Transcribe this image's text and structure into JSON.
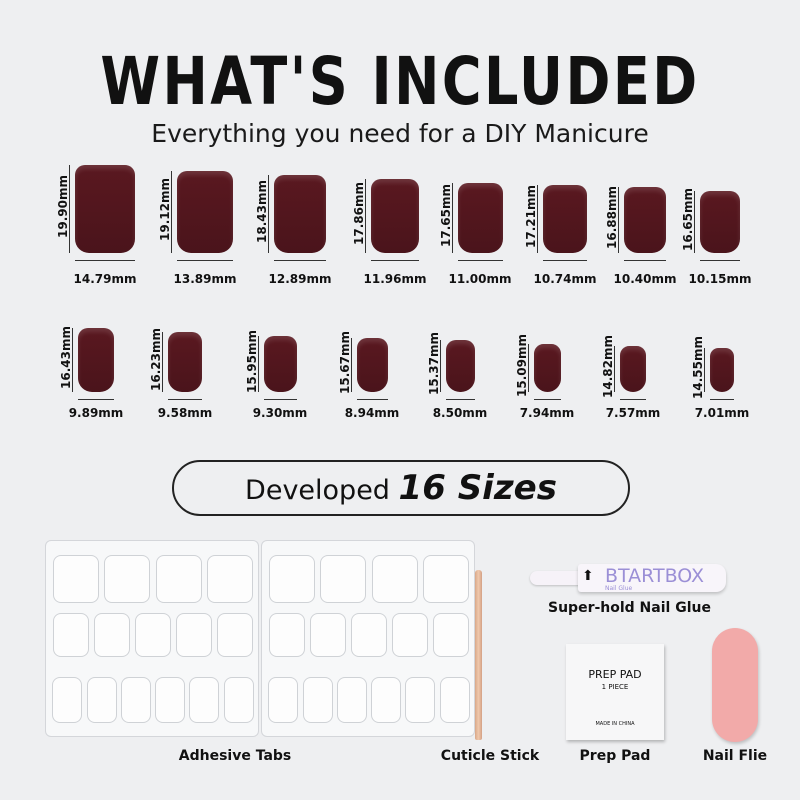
{
  "header": {
    "title": "WHAT'S INCLUDED",
    "subtitle": "Everything you need for a DIY Manicure"
  },
  "nails": [
    {
      "height": "19.90mm",
      "width": "14.79mm"
    },
    {
      "height": "19.12mm",
      "width": "13.89mm"
    },
    {
      "height": "18.43mm",
      "width": "12.89mm"
    },
    {
      "height": "17.86mm",
      "width": "11.96mm"
    },
    {
      "height": "17.65mm",
      "width": "11.00mm"
    },
    {
      "height": "17.21mm",
      "width": "10.74mm"
    },
    {
      "height": "16.88mm",
      "width": "10.40mm"
    },
    {
      "height": "16.65mm",
      "width": "10.15mm"
    },
    {
      "height": "16.43mm",
      "width": "9.89mm"
    },
    {
      "height": "16.23mm",
      "width": "9.58mm"
    },
    {
      "height": "15.95mm",
      "width": "9.30mm"
    },
    {
      "height": "15.67mm",
      "width": "8.94mm"
    },
    {
      "height": "15.37mm",
      "width": "8.50mm"
    },
    {
      "height": "15.09mm",
      "width": "7.94mm"
    },
    {
      "height": "14.82mm",
      "width": "7.57mm"
    },
    {
      "height": "14.55mm",
      "width": "7.01mm"
    }
  ],
  "banner": {
    "prefix": "Developed",
    "emphasis": "16 Sizes"
  },
  "items": {
    "adhesive_tabs": "Adhesive Tabs",
    "cuticle_stick": "Cuticle Stick",
    "glue": "Super-hold Nail Glue",
    "prep_pad": "Prep Pad",
    "nail_file": "Nail Flie"
  },
  "glue_label": {
    "brand": "BTARTBOX",
    "sub": "Nail Glue"
  },
  "prep_pad_label": {
    "title": "PREP PAD",
    "qty": "1 PIECE",
    "origin": "MADE IN CHINA"
  },
  "colors": {
    "nail": "#4e161d",
    "background": "#eeeff1",
    "file": "#f2aaa9",
    "glue_text": "#9b8fd6"
  }
}
